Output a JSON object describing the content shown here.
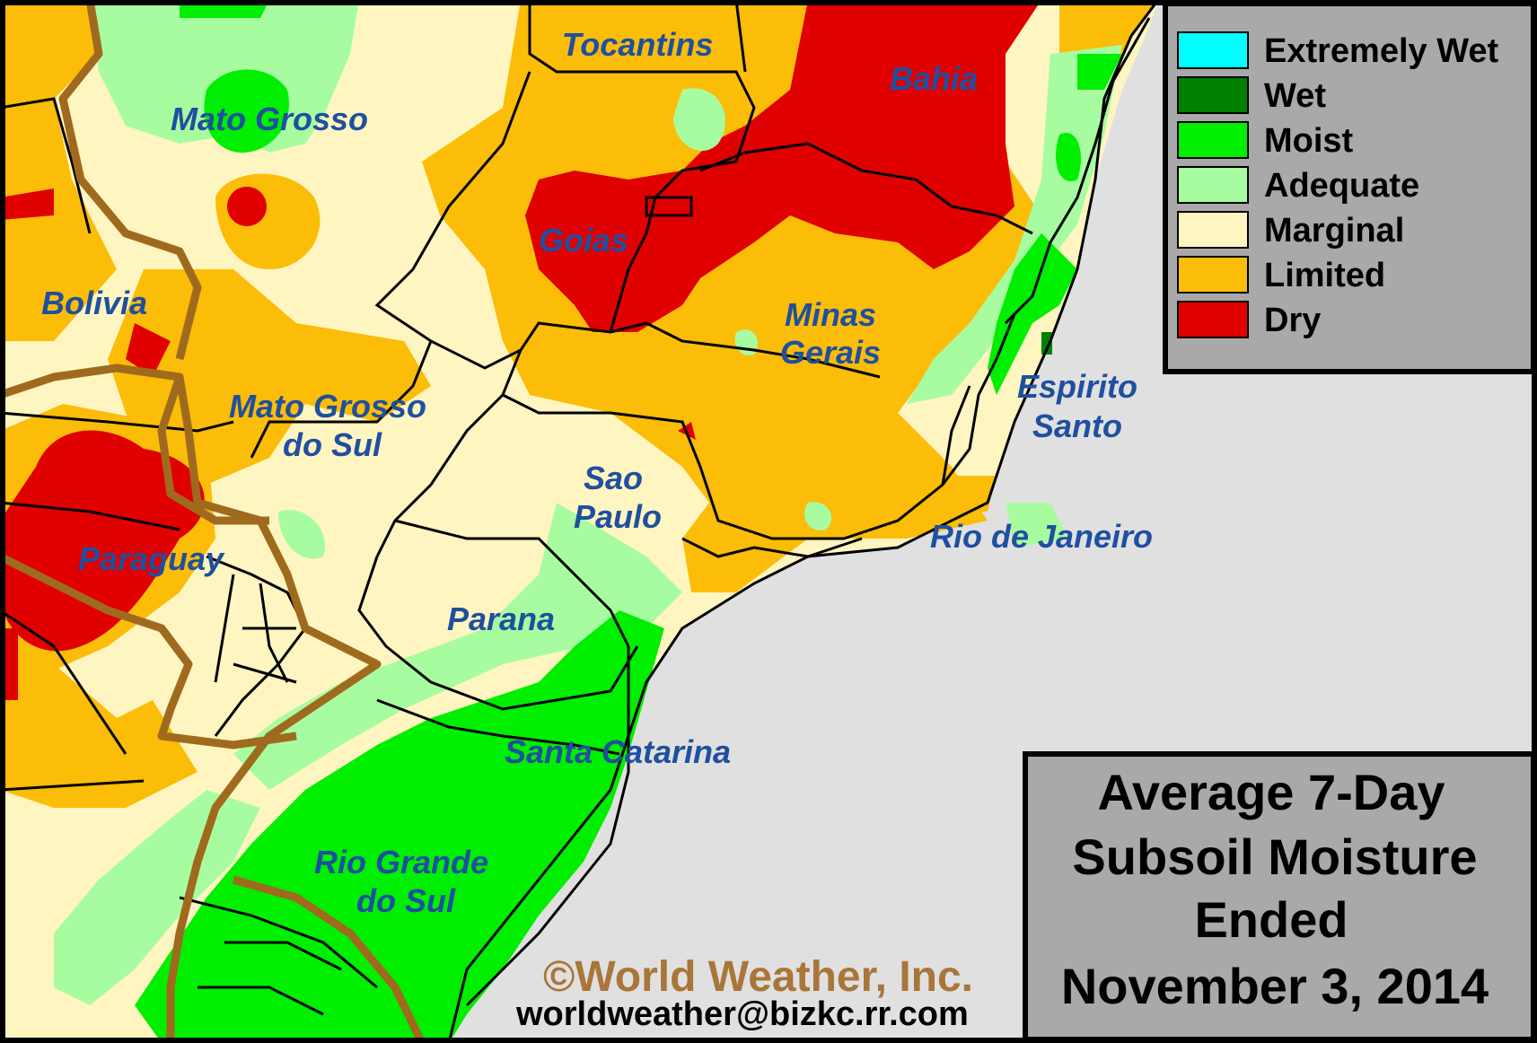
{
  "regions": {
    "tocantins": "Tocantins",
    "mato_grosso": "Mato Grosso",
    "bahia": "Bahia",
    "goias": "Goias",
    "bolivia": "Bolivia",
    "minas_gerais_1": "Minas",
    "minas_gerais_2": "Gerais",
    "mato_grosso_do_sul_1": "Mato Grosso",
    "mato_grosso_do_sul_2": "do Sul",
    "espirito_santo_1": "Espirito",
    "espirito_santo_2": "Santo",
    "sao_paulo_1": "Sao",
    "sao_paulo_2": "Paulo",
    "rio_de_janeiro": "Rio de Janeiro",
    "paraguay": "Paraguay",
    "parana": "Parana",
    "santa_catarina": "Santa Catarina",
    "rio_grande_do_sul_1": "Rio Grande",
    "rio_grande_do_sul_2": "do Sul"
  },
  "legend": {
    "items": [
      {
        "label": "Extremely Wet",
        "color": "#00ffff"
      },
      {
        "label": "Wet",
        "color": "#008000"
      },
      {
        "label": "Moist",
        "color": "#00ee00"
      },
      {
        "label": "Adequate",
        "color": "#a8fca0"
      },
      {
        "label": "Marginal",
        "color": "#fff5c0"
      },
      {
        "label": "Limited",
        "color": "#fbbd08"
      },
      {
        "label": "Dry",
        "color": "#e00000"
      }
    ]
  },
  "title": {
    "line1": "Average 7-Day",
    "line2": "Subsoil Moisture",
    "line3": "Ended",
    "line4": "November 3, 2014"
  },
  "credits": {
    "copyright": "©World Weather, Inc.",
    "email": "worldweather@bizkc.rr.com"
  },
  "colors": {
    "ocean": "#e0e0e0",
    "panel": "#a9a9a9",
    "country_border": "#a06a1e",
    "state_border": "#000000",
    "label": "#1f4fa0"
  }
}
